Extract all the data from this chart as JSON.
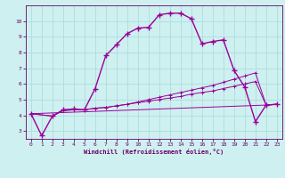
{
  "xlabel": "Windchill (Refroidissement éolien,°C)",
  "bg_color": "#cff0f0",
  "grid_color": "#aadddd",
  "line_color": "#990099",
  "xlim": [
    -0.5,
    23.5
  ],
  "ylim": [
    2.5,
    11.0
  ],
  "xticks": [
    0,
    1,
    2,
    3,
    4,
    5,
    6,
    7,
    8,
    9,
    10,
    11,
    12,
    13,
    14,
    15,
    16,
    17,
    18,
    19,
    20,
    21,
    22,
    23
  ],
  "yticks": [
    3,
    4,
    5,
    6,
    7,
    8,
    9,
    10
  ],
  "series1": [
    [
      0,
      4.1
    ],
    [
      1,
      2.7
    ],
    [
      2,
      3.95
    ],
    [
      3,
      4.35
    ],
    [
      4,
      4.4
    ],
    [
      5,
      4.35
    ],
    [
      6,
      5.7
    ],
    [
      7,
      7.8
    ],
    [
      8,
      8.5
    ],
    [
      9,
      9.2
    ],
    [
      10,
      9.55
    ],
    [
      11,
      9.6
    ],
    [
      12,
      10.4
    ],
    [
      13,
      10.5
    ],
    [
      14,
      10.5
    ],
    [
      15,
      10.15
    ],
    [
      16,
      8.55
    ],
    [
      17,
      8.7
    ],
    [
      18,
      8.8
    ],
    [
      19,
      6.85
    ],
    [
      20,
      5.8
    ],
    [
      21,
      3.6
    ],
    [
      22,
      4.65
    ],
    [
      23,
      4.7
    ]
  ],
  "series2": [
    [
      0,
      4.1
    ],
    [
      2,
      3.95
    ],
    [
      3,
      4.3
    ],
    [
      4,
      4.35
    ],
    [
      5,
      4.35
    ],
    [
      6,
      4.45
    ],
    [
      7,
      4.5
    ],
    [
      8,
      4.6
    ],
    [
      9,
      4.7
    ],
    [
      10,
      4.8
    ],
    [
      11,
      4.9
    ],
    [
      12,
      5.0
    ],
    [
      13,
      5.1
    ],
    [
      14,
      5.2
    ],
    [
      15,
      5.35
    ],
    [
      16,
      5.45
    ],
    [
      17,
      5.55
    ],
    [
      18,
      5.7
    ],
    [
      19,
      5.85
    ],
    [
      20,
      6.0
    ],
    [
      21,
      6.15
    ],
    [
      22,
      4.65
    ],
    [
      23,
      4.7
    ]
  ],
  "series3": [
    [
      0,
      4.1
    ],
    [
      2,
      3.95
    ],
    [
      3,
      4.3
    ],
    [
      4,
      4.35
    ],
    [
      5,
      4.35
    ],
    [
      6,
      4.45
    ],
    [
      7,
      4.5
    ],
    [
      8,
      4.6
    ],
    [
      9,
      4.7
    ],
    [
      10,
      4.85
    ],
    [
      11,
      5.0
    ],
    [
      12,
      5.15
    ],
    [
      13,
      5.3
    ],
    [
      14,
      5.45
    ],
    [
      15,
      5.6
    ],
    [
      16,
      5.75
    ],
    [
      17,
      5.9
    ],
    [
      18,
      6.1
    ],
    [
      19,
      6.3
    ],
    [
      20,
      6.5
    ],
    [
      21,
      6.7
    ],
    [
      22,
      4.65
    ],
    [
      23,
      4.7
    ]
  ],
  "series4": [
    [
      0,
      4.1
    ],
    [
      22,
      4.65
    ],
    [
      23,
      4.7
    ]
  ]
}
